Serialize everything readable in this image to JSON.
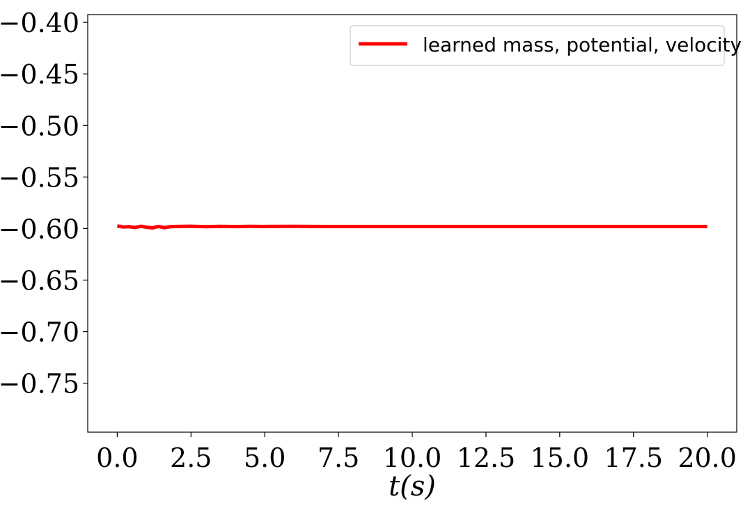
{
  "chart_data": {
    "type": "line",
    "title": "",
    "xlabel": "t(s)",
    "ylabel": "",
    "xlim": [
      -1.0,
      21.0
    ],
    "ylim": [
      -0.7975,
      -0.3925
    ],
    "xticks": [
      0.0,
      2.5,
      5.0,
      7.5,
      10.0,
      12.5,
      15.0,
      17.5,
      20.0
    ],
    "xtick_labels": [
      "0.0",
      "2.5",
      "5.0",
      "7.5",
      "10.0",
      "12.5",
      "15.0",
      "17.5",
      "20.0"
    ],
    "yticks": [
      -0.4,
      -0.45,
      -0.5,
      -0.55,
      -0.6,
      -0.65,
      -0.7,
      -0.75
    ],
    "ytick_labels": [
      "−0.40",
      "−0.45",
      "−0.50",
      "−0.55",
      "−0.60",
      "−0.65",
      "−0.70",
      "−0.75"
    ],
    "grid": false,
    "legend_position": "top-right",
    "series": [
      {
        "name": "learned mass, potential, velocity",
        "color": "#ff0000",
        "x": [
          0.0,
          0.2,
          0.4,
          0.6,
          0.8,
          1.0,
          1.2,
          1.4,
          1.6,
          1.8,
          2.0,
          2.5,
          3.0,
          3.5,
          4.0,
          4.5,
          5.0,
          6.0,
          7.0,
          8.0,
          10.0,
          12.0,
          14.0,
          16.0,
          18.0,
          20.0
        ],
        "y": [
          -0.5975,
          -0.5985,
          -0.5982,
          -0.599,
          -0.5978,
          -0.5988,
          -0.5993,
          -0.598,
          -0.5992,
          -0.5982,
          -0.598,
          -0.5978,
          -0.5982,
          -0.5979,
          -0.5981,
          -0.5979,
          -0.598,
          -0.5979,
          -0.598,
          -0.598,
          -0.598,
          -0.598,
          -0.598,
          -0.598,
          -0.598,
          -0.598
        ]
      }
    ]
  }
}
